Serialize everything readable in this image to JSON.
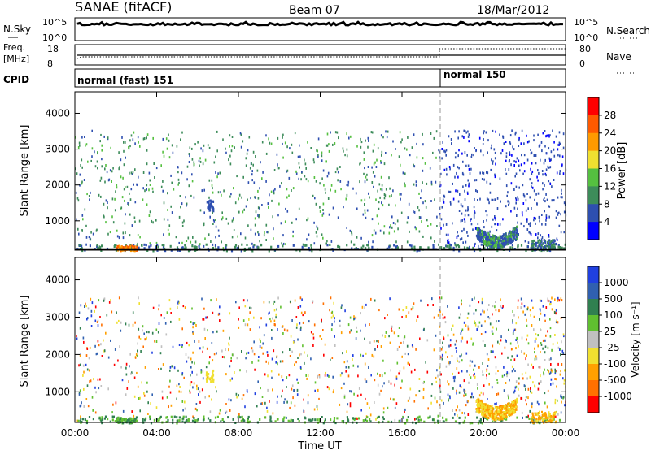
{
  "header": {
    "station": "SANAE (fitACF)",
    "beam": "Beam 07",
    "date": "18/Mar/2012"
  },
  "summary_panels": {
    "nsky_label": "N.Sky",
    "nsearch_label": "N.Search",
    "noise_ticks": [
      "10^5",
      "10^0"
    ],
    "freq_label": "Freq.",
    "freq_unit": "[MHz]",
    "freq_ticks": [
      "18",
      "8"
    ],
    "nave_label": "Nave",
    "nave_ticks": [
      "80",
      "0"
    ],
    "cpid_label": "CPID",
    "cpid_segments": [
      {
        "label": "normal (fast) 151",
        "start_hour": 0,
        "end_hour": 18
      },
      {
        "label": "normal 150",
        "start_hour": 18,
        "end_hour": 24
      }
    ]
  },
  "colors": {
    "power_scale": [
      "#0000ff",
      "#2e4fb0",
      "#3d8c5a",
      "#55c040",
      "#f0e030",
      "#ff9a00",
      "#ff5a00",
      "#ff0000"
    ],
    "velocity_scale": [
      "#2040e0",
      "#3060b0",
      "#308050",
      "#60c030",
      "#c0c0c0",
      "#f0e030",
      "#ffa000",
      "#ff7000",
      "#ff0000"
    ]
  },
  "chart_data": [
    {
      "type": "heatmap",
      "name": "power",
      "ylabel": "Slant Range [km]",
      "y_ticks": [
        1000,
        2000,
        3000,
        4000
      ],
      "ylim": [
        180,
        4600
      ],
      "xlim": [
        0,
        24
      ],
      "x_ticks": [
        "00:00",
        "04:00",
        "08:00",
        "12:00",
        "16:00",
        "20:00",
        "00:00"
      ],
      "colorbar_label": "Power [dB]",
      "colorbar_ticks": [
        "28",
        "24",
        "20",
        "16",
        "12",
        "8",
        "4"
      ],
      "features": [
        {
          "hour_start": 20.0,
          "hour_end": 21.8,
          "range_start": 300,
          "range_end": 900,
          "note": "arc"
        },
        {
          "hour_start": 2.0,
          "hour_end": 3.0,
          "range_start": 180,
          "range_end": 320,
          "note": "near-range"
        }
      ]
    },
    {
      "type": "heatmap",
      "name": "velocity",
      "ylabel": "Slant Range [km]",
      "y_ticks": [
        1000,
        2000,
        3000,
        4000
      ],
      "ylim": [
        180,
        4600
      ],
      "xlim": [
        0,
        24
      ],
      "x_ticks": [
        "00:00",
        "04:00",
        "08:00",
        "12:00",
        "16:00",
        "20:00",
        "00:00"
      ],
      "xlabel": "Time UT",
      "colorbar_label": "Velocity [m s⁻¹]",
      "colorbar_ticks": [
        "1000",
        "500",
        "100",
        "25",
        "-25",
        "-100",
        "-500",
        "-1000"
      ]
    }
  ]
}
